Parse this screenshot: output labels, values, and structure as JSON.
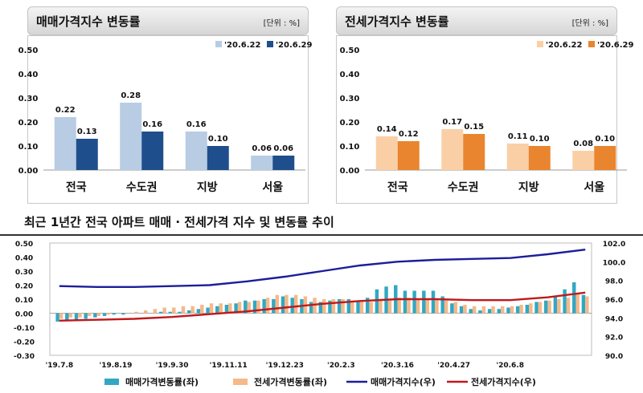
{
  "colors": {
    "sale_prev": "#b8cce4",
    "sale_curr": "#1f4e8c",
    "jeonse_prev": "#fbcfa6",
    "jeonse_curr": "#e9852e",
    "bar_teal": "#31a8c2",
    "bar_orange": "#f5b98a",
    "line_blue": "#1c1e9a",
    "line_red": "#c0191b"
  },
  "panels": {
    "sale": {
      "title": "매매가격지수 변동률",
      "unit": "[단위 : %]"
    },
    "jeonse": {
      "title": "전세가격지수 변동률",
      "unit": "[단위 : %]"
    }
  },
  "bottom_title": "최근 1년간 전국 아파트 매매 · 전세가격 지수 및 변동률 추이",
  "chart_data": [
    {
      "type": "bar",
      "title": "매매가격지수 변동률",
      "categories": [
        "전국",
        "수도권",
        "지방",
        "서울"
      ],
      "series": [
        {
          "name": "'20.6.22",
          "values": [
            0.22,
            0.28,
            0.16,
            0.06
          ]
        },
        {
          "name": "'20.6.29",
          "values": [
            0.13,
            0.16,
            0.1,
            0.06
          ]
        }
      ],
      "ylim": [
        0,
        0.5
      ],
      "yticks": [
        "0.00",
        "0.10",
        "0.20",
        "0.30",
        "0.40",
        "0.50"
      ],
      "legend": "top-right",
      "grid": false
    },
    {
      "type": "bar",
      "title": "전세가격지수 변동률",
      "categories": [
        "전국",
        "수도권",
        "지방",
        "서울"
      ],
      "series": [
        {
          "name": "'20.6.22",
          "values": [
            0.14,
            0.17,
            0.11,
            0.08
          ]
        },
        {
          "name": "'20.6.29",
          "values": [
            0.12,
            0.15,
            0.1,
            0.1
          ]
        }
      ],
      "ylim": [
        0,
        0.5
      ],
      "yticks": [
        "0.00",
        "0.10",
        "0.20",
        "0.30",
        "0.40",
        "0.50"
      ],
      "legend": "top-right",
      "grid": false
    },
    {
      "type": "bar+line",
      "title": "최근 1년간 전국 아파트 매매 · 전세가격 지수 및 변동률 추이",
      "x_ticks": [
        "'19.7.8",
        "'19.8.19",
        "'19.9.30",
        "'19.11.11",
        "'19.12.23",
        "'20.2.3",
        "'20.3.16",
        "'20.4.27",
        "'20.6.8"
      ],
      "y_left": {
        "lim": [
          -0.3,
          0.5
        ],
        "ticks": [
          "-0.30",
          "-0.20",
          "-0.10",
          "0.00",
          "0.10",
          "0.20",
          "0.30",
          "0.40",
          "0.50"
        ]
      },
      "y_right": {
        "lim": [
          90.0,
          102.0
        ],
        "ticks": [
          "90.0",
          "92.0",
          "94.0",
          "96.0",
          "98.0",
          "100.0",
          "102.0"
        ]
      },
      "legend": "bottom",
      "grid": false,
      "series": [
        {
          "name": "매매가격변동률(좌)",
          "kind": "bar",
          "axis": "left",
          "values": [
            -0.06,
            -0.05,
            -0.05,
            -0.04,
            -0.03,
            -0.02,
            -0.01,
            -0.01,
            0.0,
            0.0,
            0.0,
            0.01,
            0.01,
            0.01,
            0.02,
            0.03,
            0.04,
            0.05,
            0.06,
            0.07,
            0.09,
            0.09,
            0.1,
            0.1,
            0.12,
            0.11,
            0.1,
            0.08,
            0.08,
            0.09,
            0.1,
            0.1,
            0.09,
            0.11,
            0.17,
            0.19,
            0.2,
            0.16,
            0.16,
            0.16,
            0.16,
            0.12,
            0.07,
            0.05,
            0.03,
            0.02,
            0.03,
            0.03,
            0.04,
            0.05,
            0.06,
            0.08,
            0.09,
            0.12,
            0.17,
            0.22,
            0.13
          ]
        },
        {
          "name": "전세가격변동률(좌)",
          "kind": "bar",
          "axis": "left",
          "values": [
            -0.04,
            -0.03,
            -0.03,
            -0.02,
            -0.02,
            -0.01,
            0.0,
            0.0,
            0.01,
            0.02,
            0.03,
            0.04,
            0.04,
            0.05,
            0.05,
            0.06,
            0.07,
            0.07,
            0.07,
            0.08,
            0.08,
            0.09,
            0.11,
            0.13,
            0.13,
            0.13,
            0.12,
            0.11,
            0.1,
            0.1,
            0.1,
            0.09,
            0.09,
            0.08,
            0.09,
            0.1,
            0.11,
            0.11,
            0.1,
            0.1,
            0.1,
            0.09,
            0.08,
            0.06,
            0.05,
            0.05,
            0.05,
            0.05,
            0.05,
            0.06,
            0.07,
            0.08,
            0.09,
            0.1,
            0.11,
            0.14,
            0.12
          ]
        },
        {
          "name": "매매가격지수(우)",
          "kind": "line",
          "axis": "right",
          "x": [
            0,
            4,
            8,
            12,
            16,
            20,
            24,
            28,
            32,
            36,
            40,
            44,
            48,
            52,
            56
          ],
          "values": [
            97.4,
            97.3,
            97.3,
            97.4,
            97.5,
            97.9,
            98.4,
            99.0,
            99.6,
            100.0,
            100.2,
            100.3,
            100.4,
            100.8,
            101.3
          ]
        },
        {
          "name": "전세가격지수(우)",
          "kind": "line",
          "axis": "right",
          "x": [
            0,
            4,
            8,
            12,
            16,
            20,
            24,
            28,
            32,
            36,
            40,
            44,
            48,
            52,
            56
          ],
          "values": [
            93.7,
            93.8,
            93.9,
            94.1,
            94.4,
            94.7,
            95.1,
            95.5,
            95.8,
            96.0,
            96.0,
            95.9,
            95.9,
            96.2,
            96.7
          ]
        }
      ]
    }
  ]
}
